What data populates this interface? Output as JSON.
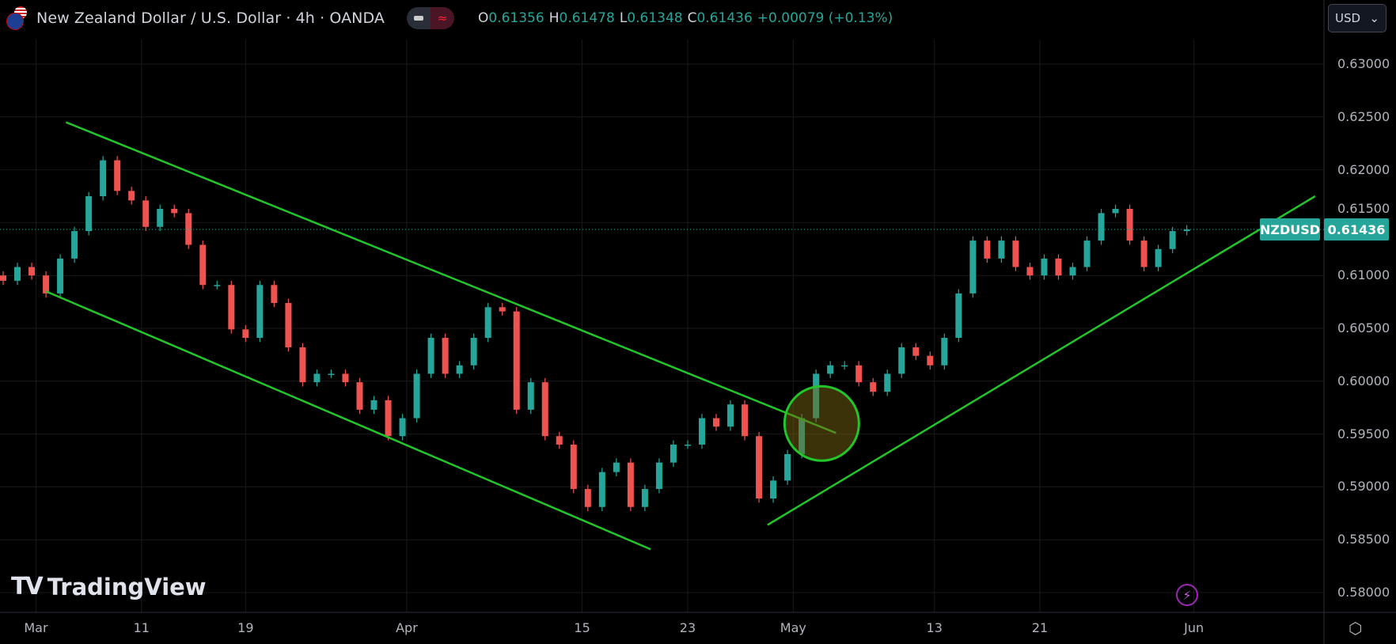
{
  "header": {
    "title": "New Zealand Dollar / U.S. Dollar · 4h · OANDA",
    "flag_icon": "nz-us-flag-icon",
    "ohlc": [
      {
        "k": "O",
        "v": "0.61356"
      },
      {
        "k": "H",
        "v": "0.61478"
      },
      {
        "k": "L",
        "v": "0.61348"
      },
      {
        "k": "C",
        "v": "0.61436"
      }
    ],
    "change": "+0.00079 (+0.13%)"
  },
  "currency_button": {
    "label": "USD",
    "icon": "chevron-down-icon"
  },
  "price_tag": {
    "symbol": "NZDUSD",
    "price": "0.61436"
  },
  "logo": "TradingView",
  "colors": {
    "up": "#26a69a",
    "down": "#ef5350",
    "trendline": "#22c52a",
    "grid": "#1a1a1a",
    "tag": "#26a69a"
  },
  "chart_data": {
    "type": "candlestick",
    "ylim": [
      0.5775,
      0.633
    ],
    "yticks": [
      "0.63000",
      "0.62500",
      "0.62000",
      "0.61500",
      "0.61000",
      "0.60500",
      "0.60000",
      "0.59500",
      "0.59000",
      "0.58500",
      "0.58000"
    ],
    "closes": [
      0.6095,
      0.6108,
      0.61,
      0.6083,
      0.6116,
      0.6142,
      0.6175,
      0.6209,
      0.618,
      0.6171,
      0.6146,
      0.6163,
      0.6159,
      0.6129,
      0.6091,
      0.6091,
      0.6049,
      0.6041,
      0.6091,
      0.6074,
      0.6032,
      0.5999,
      0.6007,
      0.6007,
      0.5999,
      0.5973,
      0.5982,
      0.5948,
      0.5965,
      0.6007,
      0.6041,
      0.6007,
      0.6015,
      0.6041,
      0.607,
      0.6066,
      0.5973,
      0.5999,
      0.5948,
      0.594,
      0.5898,
      0.5881,
      0.5914,
      0.5923,
      0.5881,
      0.5898,
      0.5923,
      0.594,
      0.594,
      0.5965,
      0.5957,
      0.5978,
      0.5948,
      0.5889,
      0.5906,
      0.5931,
      0.5965,
      0.6007,
      0.6015,
      0.6015,
      0.5999,
      0.599,
      0.6007,
      0.6032,
      0.6024,
      0.6015,
      0.6041,
      0.6083,
      0.6133,
      0.6116,
      0.6133,
      0.6108,
      0.61,
      0.6116,
      0.61,
      0.6108,
      0.6133,
      0.6159,
      0.6163,
      0.6133,
      0.6108,
      0.6125,
      0.6142,
      0.61436
    ],
    "xticks": [
      {
        "label": "Mar",
        "at": 2.3
      },
      {
        "label": "11",
        "at": 9.7
      },
      {
        "label": "19",
        "at": 17
      },
      {
        "label": "Apr",
        "at": 28.3
      },
      {
        "label": "15",
        "at": 40.6
      },
      {
        "label": "23",
        "at": 48
      },
      {
        "label": "May",
        "at": 55.4
      },
      {
        "label": "13",
        "at": 65.3
      },
      {
        "label": "21",
        "at": 72.7
      },
      {
        "label": "Jun",
        "at": 83.5
      }
    ],
    "drawings": [
      {
        "type": "line",
        "name": "channel-upper",
        "from": [
          4.4,
          0.6245
        ],
        "to": [
          58.4,
          0.5951
        ]
      },
      {
        "type": "line",
        "name": "channel-lower",
        "from": [
          3.0,
          0.6085
        ],
        "to": [
          45.4,
          0.5841
        ]
      },
      {
        "type": "line",
        "name": "uptrend-support",
        "from": [
          53.6,
          0.5864
        ],
        "to": [
          92.0,
          0.6175
        ]
      },
      {
        "type": "circle",
        "name": "breakout-highlight",
        "center": [
          57.4,
          0.596
        ]
      }
    ]
  }
}
